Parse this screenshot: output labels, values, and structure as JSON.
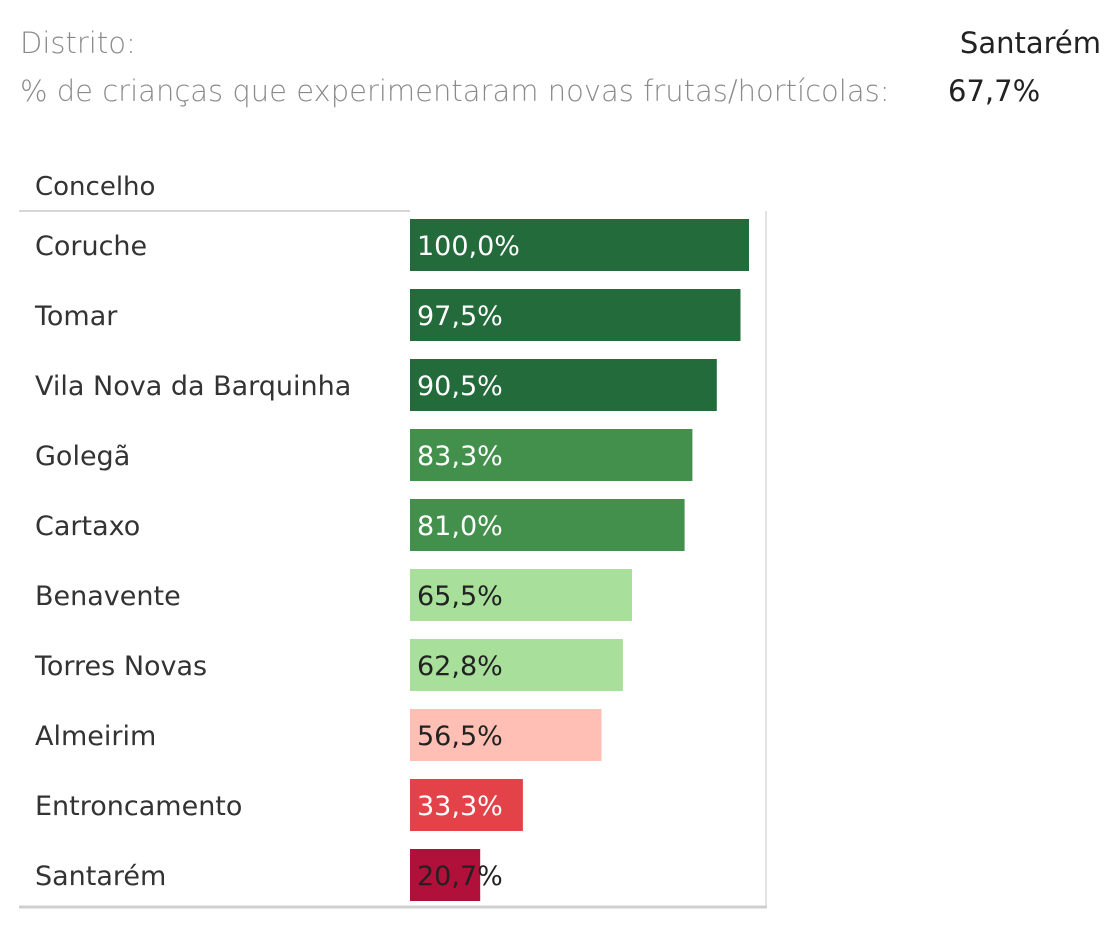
{
  "header": {
    "district_label": "Distrito:",
    "district_value": "Santarém",
    "metric_label": "% de crianças que experimentaram novas frutas/hortícolas:",
    "metric_value": "67,7%"
  },
  "chart_data": {
    "type": "bar",
    "orientation": "horizontal",
    "column_header": "Concelho",
    "categories": [
      "Coruche",
      "Tomar",
      "Vila Nova da Barquinha",
      "Golegã",
      "Cartaxo",
      "Benavente",
      "Torres Novas",
      "Almeirim",
      "Entroncamento",
      "Santarém"
    ],
    "values": [
      100.0,
      97.5,
      90.5,
      83.3,
      81.0,
      65.5,
      62.8,
      56.5,
      33.3,
      20.7
    ],
    "value_labels": [
      "100,0%",
      "97,5%",
      "90,5%",
      "83,3%",
      "81,0%",
      "65,5%",
      "62,8%",
      "56,5%",
      "33,3%",
      "20,7%"
    ],
    "colors": [
      "#246b3c",
      "#246b3c",
      "#246b3c",
      "#43904d",
      "#43904d",
      "#a8df9b",
      "#a8df9b",
      "#ffbfb4",
      "#e34348",
      "#b0103a"
    ],
    "label_colors": [
      "#ffffff",
      "#ffffff",
      "#ffffff",
      "#ffffff",
      "#ffffff",
      "#222222",
      "#222222",
      "#222222",
      "#ffffff",
      "#222222"
    ],
    "xlim": [
      0,
      100
    ]
  }
}
